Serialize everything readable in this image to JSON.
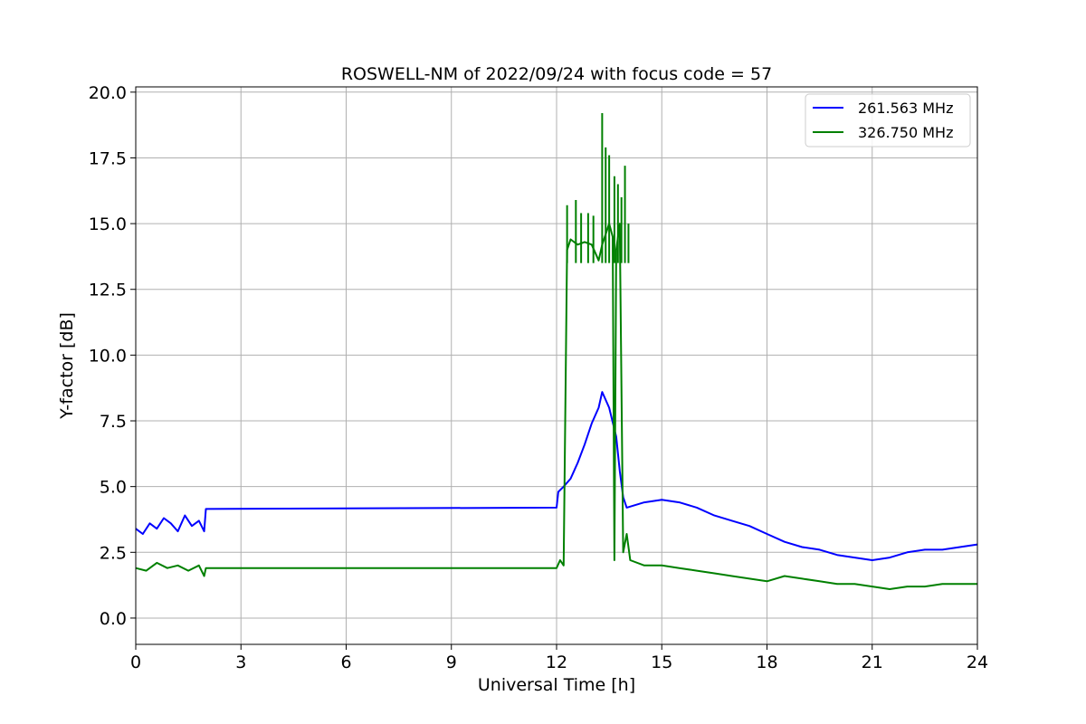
{
  "chart_data": {
    "type": "line",
    "title": "ROSWELL-NM of 2022/09/24 with focus code = 57",
    "xlabel": "Universal Time [h]",
    "ylabel": "Y-factor [dB]",
    "xlim": [
      0,
      24
    ],
    "ylim": [
      -1.0,
      20.2
    ],
    "x_ticks": [
      0,
      3,
      6,
      9,
      12,
      15,
      18,
      21,
      24
    ],
    "x_tick_labels": [
      "0",
      "3",
      "6",
      "9",
      "12",
      "15",
      "18",
      "21",
      "24"
    ],
    "y_ticks": [
      0,
      2.5,
      5,
      7.5,
      10,
      12.5,
      15,
      17.5,
      20
    ],
    "y_tick_labels": [
      "0.0",
      "2.5",
      "5.0",
      "7.5",
      "10.0",
      "12.5",
      "15.0",
      "17.5",
      "20.0"
    ],
    "grid": true,
    "legend_position": "top-right",
    "series": [
      {
        "name": "261.563 MHz",
        "color": "#0000ff",
        "points": [
          [
            0.0,
            3.4
          ],
          [
            0.2,
            3.2
          ],
          [
            0.4,
            3.6
          ],
          [
            0.6,
            3.4
          ],
          [
            0.8,
            3.8
          ],
          [
            1.0,
            3.6
          ],
          [
            1.2,
            3.3
          ],
          [
            1.4,
            3.9
          ],
          [
            1.6,
            3.5
          ],
          [
            1.8,
            3.7
          ],
          [
            1.95,
            3.3
          ],
          [
            2.0,
            4.15
          ],
          [
            12.0,
            4.2
          ],
          [
            12.05,
            4.8
          ],
          [
            12.2,
            5.0
          ],
          [
            12.4,
            5.3
          ],
          [
            12.6,
            5.9
          ],
          [
            12.8,
            6.6
          ],
          [
            13.0,
            7.4
          ],
          [
            13.2,
            8.0
          ],
          [
            13.3,
            8.6
          ],
          [
            13.5,
            8.0
          ],
          [
            13.7,
            6.9
          ],
          [
            13.8,
            5.6
          ],
          [
            13.9,
            4.6
          ],
          [
            14.0,
            4.2
          ],
          [
            14.5,
            4.4
          ],
          [
            15.0,
            4.5
          ],
          [
            15.5,
            4.4
          ],
          [
            16.0,
            4.2
          ],
          [
            16.5,
            3.9
          ],
          [
            17.0,
            3.7
          ],
          [
            17.5,
            3.5
          ],
          [
            18.0,
            3.2
          ],
          [
            18.5,
            2.9
          ],
          [
            19.0,
            2.7
          ],
          [
            19.5,
            2.6
          ],
          [
            20.0,
            2.4
          ],
          [
            20.5,
            2.3
          ],
          [
            21.0,
            2.2
          ],
          [
            21.5,
            2.3
          ],
          [
            22.0,
            2.5
          ],
          [
            22.5,
            2.6
          ],
          [
            23.0,
            2.6
          ],
          [
            23.5,
            2.7
          ],
          [
            24.0,
            2.8
          ]
        ]
      },
      {
        "name": "326.750 MHz",
        "color": "#008000",
        "points": [
          [
            0.0,
            1.9
          ],
          [
            0.3,
            1.8
          ],
          [
            0.6,
            2.1
          ],
          [
            0.9,
            1.9
          ],
          [
            1.2,
            2.0
          ],
          [
            1.5,
            1.8
          ],
          [
            1.8,
            2.0
          ],
          [
            1.95,
            1.6
          ],
          [
            2.0,
            1.9
          ],
          [
            12.0,
            1.9
          ],
          [
            12.1,
            2.2
          ],
          [
            12.2,
            2.0
          ],
          [
            12.3,
            14.0
          ],
          [
            12.4,
            14.4
          ],
          [
            12.6,
            14.2
          ],
          [
            12.8,
            14.3
          ],
          [
            13.0,
            14.2
          ],
          [
            13.2,
            13.6
          ],
          [
            13.3,
            14.2
          ],
          [
            13.4,
            14.6
          ],
          [
            13.5,
            15.0
          ],
          [
            13.6,
            14.5
          ],
          [
            13.65,
            2.2
          ],
          [
            13.7,
            14.0
          ],
          [
            13.8,
            15.0
          ],
          [
            13.9,
            2.5
          ],
          [
            14.0,
            3.2
          ],
          [
            14.1,
            2.2
          ],
          [
            14.5,
            2.0
          ],
          [
            15.0,
            2.0
          ],
          [
            15.5,
            1.9
          ],
          [
            16.0,
            1.8
          ],
          [
            16.5,
            1.7
          ],
          [
            17.0,
            1.6
          ],
          [
            17.5,
            1.5
          ],
          [
            18.0,
            1.4
          ],
          [
            18.5,
            1.6
          ],
          [
            19.0,
            1.5
          ],
          [
            19.5,
            1.4
          ],
          [
            20.0,
            1.3
          ],
          [
            20.5,
            1.3
          ],
          [
            21.0,
            1.2
          ],
          [
            21.5,
            1.1
          ],
          [
            22.0,
            1.2
          ],
          [
            22.5,
            1.2
          ],
          [
            23.0,
            1.3
          ],
          [
            23.5,
            1.3
          ],
          [
            24.0,
            1.3
          ]
        ],
        "spikes": [
          [
            12.3,
            15.7
          ],
          [
            12.55,
            15.9
          ],
          [
            12.7,
            15.4
          ],
          [
            12.9,
            15.4
          ],
          [
            13.05,
            15.3
          ],
          [
            13.3,
            19.2
          ],
          [
            13.4,
            17.9
          ],
          [
            13.5,
            17.6
          ],
          [
            13.65,
            16.8
          ],
          [
            13.75,
            16.5
          ],
          [
            13.85,
            16.0
          ],
          [
            13.95,
            17.2
          ],
          [
            14.05,
            15.0
          ]
        ]
      }
    ]
  }
}
